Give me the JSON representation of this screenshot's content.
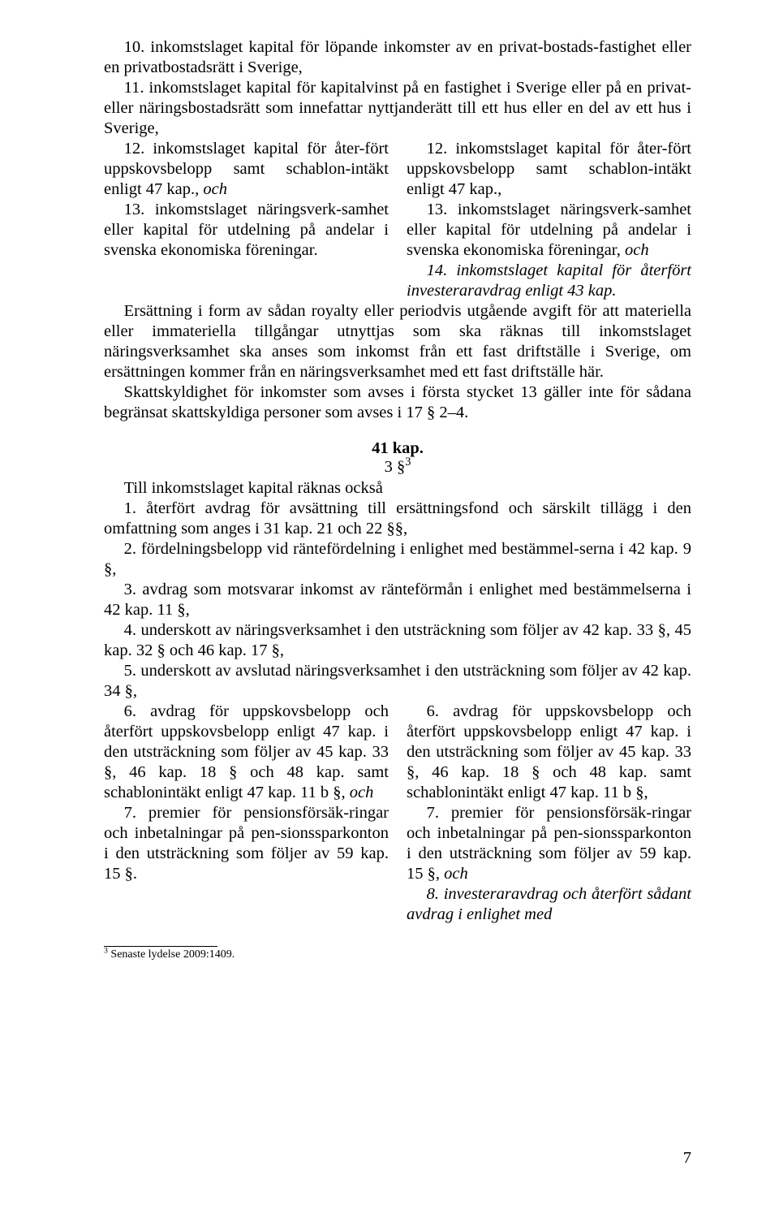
{
  "intro": {
    "p10": "10. inkomstslaget kapital för löpande inkomster av en privat-bostads-fastighet eller en privatbostadsrätt i Sverige,",
    "p11": "11. inkomstslaget kapital för kapitalvinst på en fastighet i Sverige eller på en privat- eller näringsbostadsrätt som innefattar nyttjanderätt till ett hus eller en del av ett hus i Sverige,"
  },
  "cols1": {
    "left": {
      "p12a": "12. inkomstslaget kapital för åter-fört uppskovsbelopp samt schablon-intäkt enligt 47 kap.,",
      "p12b": " och",
      "p13": "13. inkomstslaget näringsverk-samhet eller kapital för utdelning på andelar i svenska ekonomiska föreningar."
    },
    "right": {
      "p12": "12. inkomstslaget kapital för åter-fört uppskovsbelopp samt schablon-intäkt enligt 47 kap.,",
      "p13a": "13. inkomstslaget näringsverk-samhet eller kapital för utdelning på andelar i svenska ekonomiska föreningar,",
      "p13b": " och",
      "p14": "14. inkomstslaget kapital för återfört investeraravdrag enligt 43 kap."
    }
  },
  "mid": {
    "p1": "Ersättning i form av sådan royalty eller periodvis utgående avgift för att materiella eller immateriella tillgångar utnyttjas som ska räknas till inkomstslaget näringsverksamhet ska anses som inkomst från ett fast driftställe i Sverige, om ersättningen kommer från en näringsverksamhet med ett fast driftställe här.",
    "p2": "Skattskyldighet för inkomster som avses i första stycket 13 gäller inte för sådana begränsat skattskyldiga personer som avses i 17 § 2–4."
  },
  "heading": {
    "kap": "41 kap.",
    "sub": "3 §",
    "supref": "3"
  },
  "list": {
    "intro": "Till inkomstslaget kapital räknas också",
    "i1": "1. återfört avdrag för avsättning till ersättningsfond och särskilt tillägg i den omfattning som anges i 31 kap. 21 och 22 §§,",
    "i2": "2. fördelningsbelopp vid räntefördelning i enlighet med bestämmel-serna i 42 kap. 9 §,",
    "i3": "3. avdrag som motsvarar inkomst av ränteförmån i enlighet med bestämmelserna i 42 kap. 11 §,",
    "i4": "4. underskott av näringsverksamhet i den utsträckning som följer av 42 kap. 33 §, 45 kap. 32 § och 46 kap. 17 §,",
    "i5": "5. underskott av avslutad näringsverksamhet i den utsträckning som följer av 42 kap. 34 §,"
  },
  "cols2": {
    "left": {
      "p6a": "6. avdrag för uppskovsbelopp och återfört uppskovsbelopp enligt 47 kap. i den utsträckning som följer av 45 kap. 33 §, 46 kap. 18 § och 48 kap. samt schablonintäkt enligt 47 kap. 11 b §,",
      "p6b": " och",
      "p7": "7. premier för pensionsförsäk-ringar och inbetalningar på pen-sionssparkonton i den utsträckning som följer av 59 kap. 15 §."
    },
    "right": {
      "p6": "6. avdrag för uppskovsbelopp och återfört uppskovsbelopp enligt 47 kap. i den utsträckning som följer av 45 kap. 33 §, 46 kap. 18 § och 48 kap. samt schablonintäkt enligt 47 kap. 11 b §,",
      "p7a": "7. premier för pensionsförsäk-ringar och inbetalningar på pen-sionssparkonton i den utsträckning som följer av 59 kap. 15 §,",
      "p7b": " och",
      "p8": "8. investeraravdrag och återfört sådant avdrag i enlighet med"
    }
  },
  "footnote": {
    "marker": "3",
    "text": " Senaste lydelse 2009:1409."
  },
  "pageNumber": "7"
}
